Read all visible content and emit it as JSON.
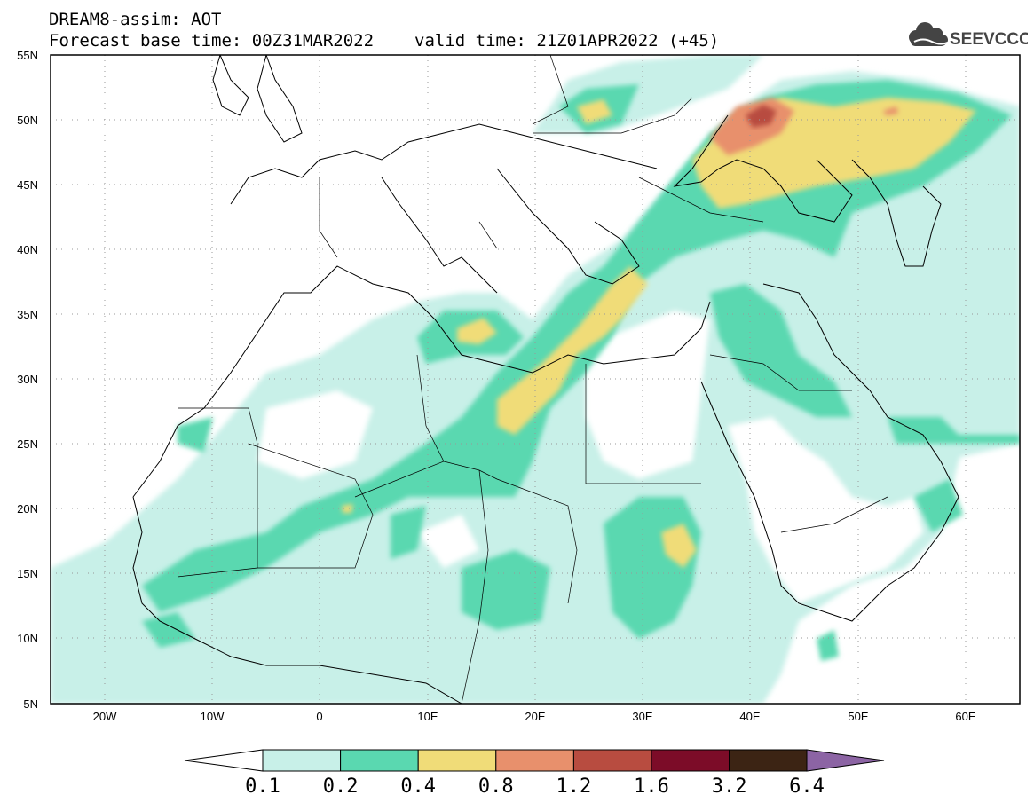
{
  "header": {
    "title": "DREAM8-assim: AOT",
    "base_time": "Forecast base time: 00Z31MAR2022",
    "valid_time": "valid time: 21Z01APR2022 (+45)"
  },
  "logo": {
    "text": "SEEVCCC",
    "icon": "cloud-logo-icon"
  },
  "map": {
    "lon_labels": [
      "20W",
      "10W",
      "0",
      "10E",
      "20E",
      "30E",
      "40E",
      "50E",
      "60E"
    ],
    "lat_labels": [
      "55N",
      "50N",
      "45N",
      "40N",
      "35N",
      "30N",
      "25N",
      "20N",
      "15N",
      "10N",
      "5N"
    ]
  },
  "colorbar": {
    "labels": [
      "0.1",
      "0.2",
      "0.4",
      "0.8",
      "1.2",
      "1.6",
      "3.2",
      "6.4"
    ],
    "colors": [
      "#c8f0e8",
      "#5ad8b0",
      "#f0dc78",
      "#e8906c",
      "#b84c40",
      "#7c0c28",
      "#3c2414",
      "#8c64a4"
    ]
  }
}
